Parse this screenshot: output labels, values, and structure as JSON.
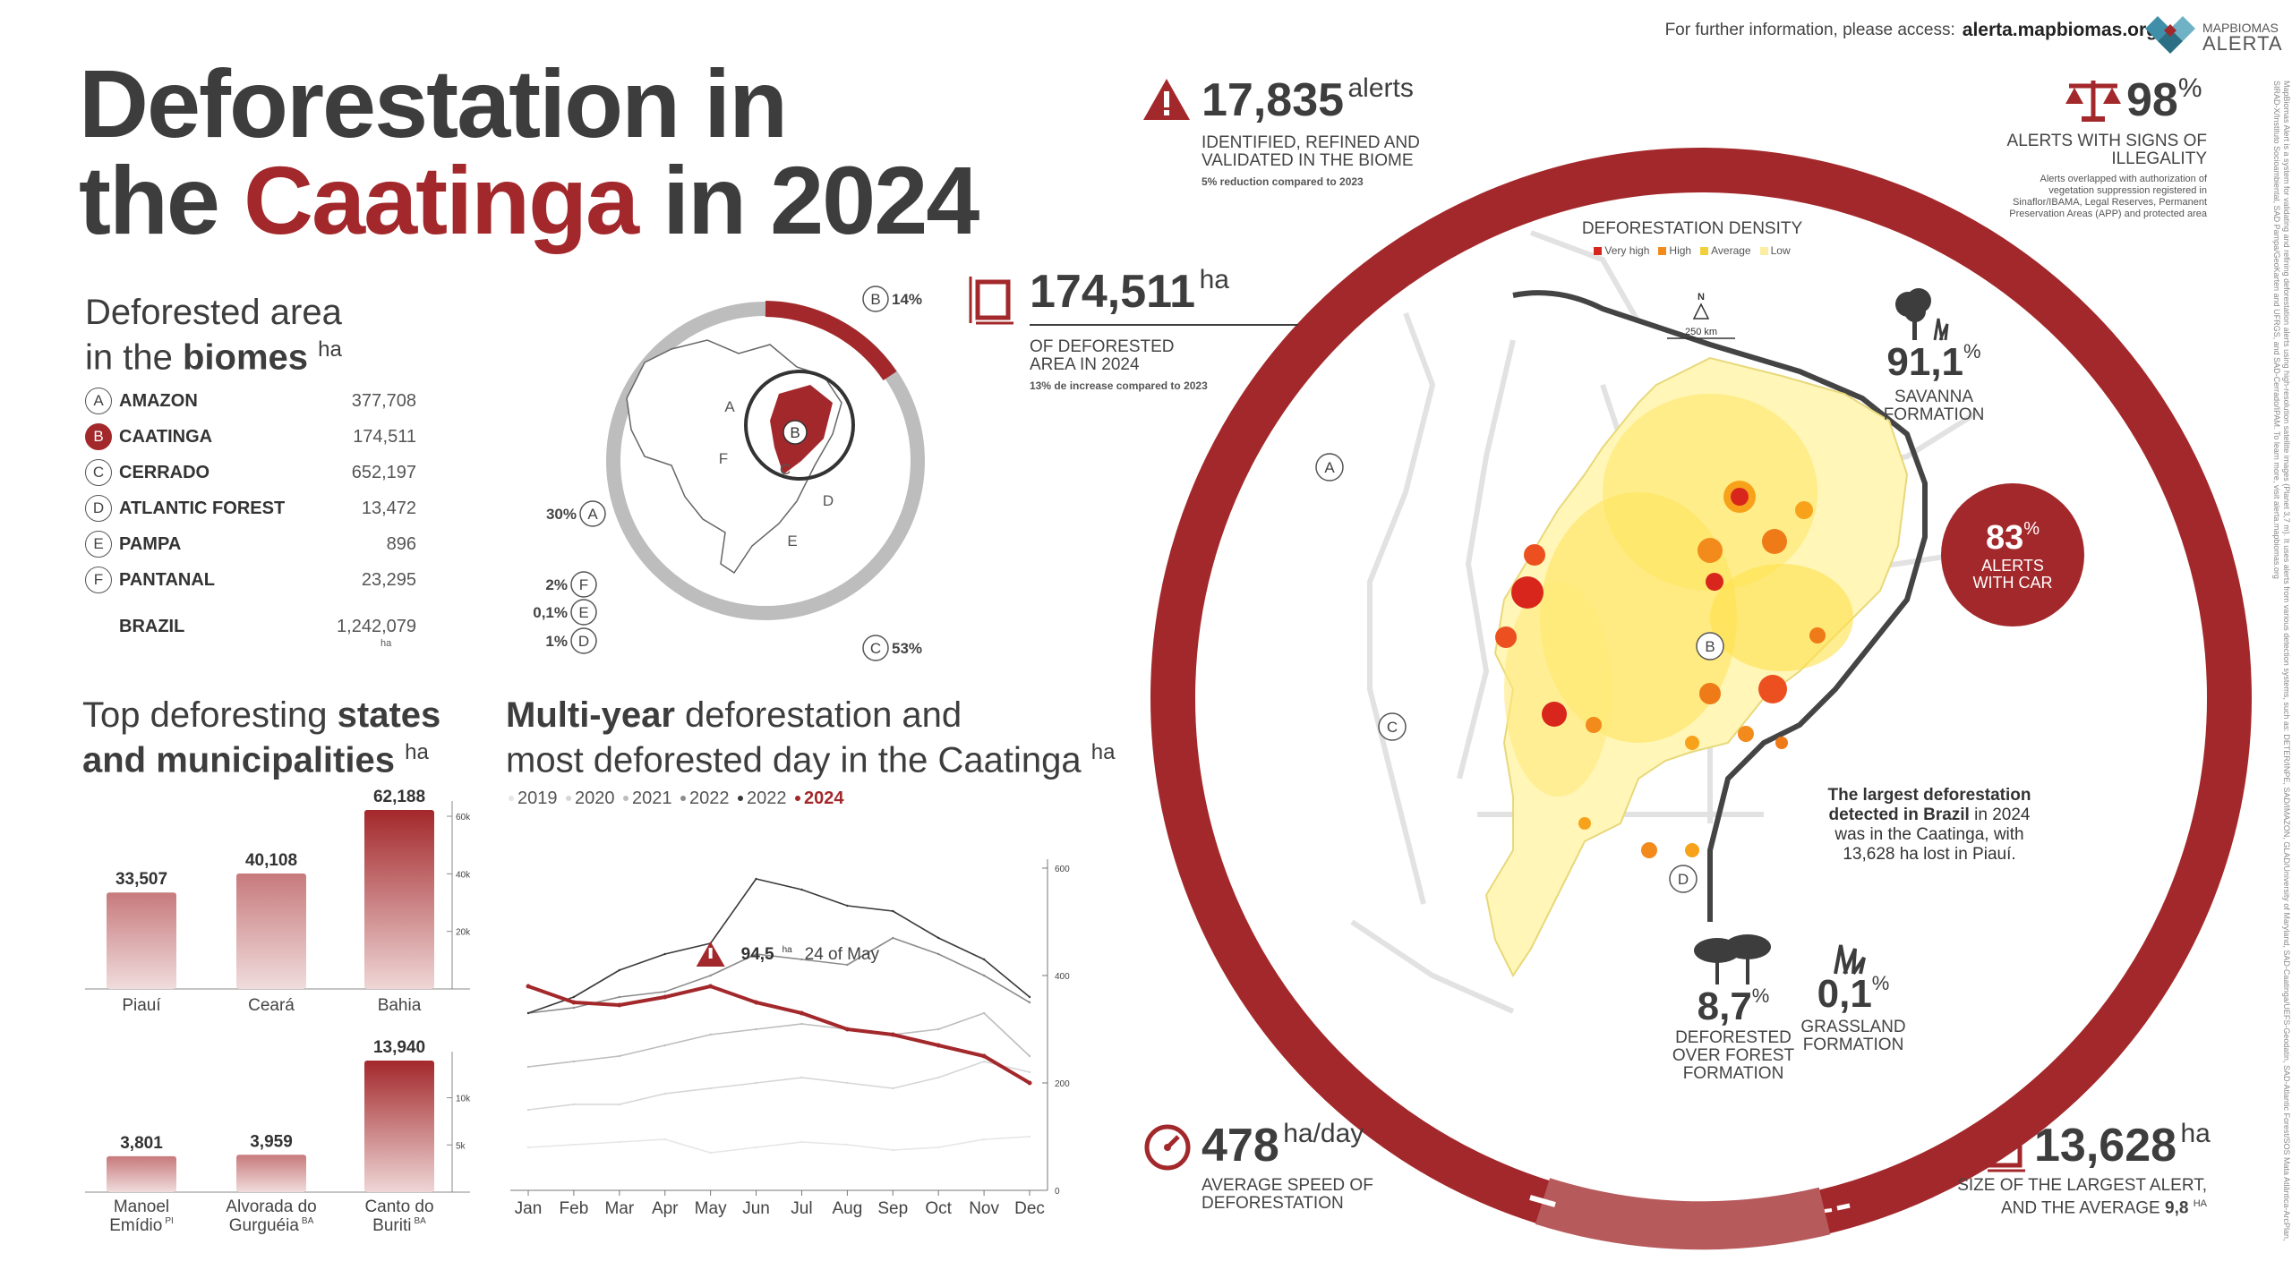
{
  "header": {
    "info_label": "For further information, please access:",
    "info_url": "alerta.mapbiomas.org",
    "logo_top": "MAPBIOMAS",
    "logo_bottom": "ALERTA"
  },
  "title": {
    "line1": "Deforestation in",
    "line2_pre": "the ",
    "line2_red": "Caatinga",
    "line2_post": " in 2024"
  },
  "biomes": {
    "heading_1": "Deforested area",
    "heading_2_pre": "in the ",
    "heading_2_bold": "biomes",
    "unit": "ha",
    "rows": [
      {
        "letter": "A",
        "name": "AMAZON",
        "value": "377,708"
      },
      {
        "letter": "B",
        "name": "CAATINGA",
        "value": "174,511"
      },
      {
        "letter": "C",
        "name": "CERRADO",
        "value": "652,197"
      },
      {
        "letter": "D",
        "name": "ATLANTIC FOREST",
        "value": "13,472"
      },
      {
        "letter": "E",
        "name": "PAMPA",
        "value": "896"
      },
      {
        "letter": "F",
        "name": "PANTANAL",
        "value": "23,295"
      }
    ],
    "total_label": "BRAZIL",
    "total_value": "1,242,079",
    "total_unit": "ha"
  },
  "brazil_map": {
    "labels": [
      "A",
      "B",
      "C",
      "D",
      "E",
      "F"
    ],
    "shares": [
      {
        "letter": "B",
        "pct": "14%"
      },
      {
        "letter": "A",
        "pct": "30%"
      },
      {
        "letter": "F",
        "pct": "2%"
      },
      {
        "letter": "E",
        "pct": "0,1%"
      },
      {
        "letter": "D",
        "pct": "1%"
      },
      {
        "letter": "C",
        "pct": "53%"
      }
    ]
  },
  "top_states": {
    "heading_pre": "Top deforesting ",
    "heading_bold1": "states",
    "heading_bold2": "and municipalities",
    "unit": "ha"
  },
  "multi_year": {
    "heading_bold": "Multi-year",
    "heading_rest1": " deforestation and",
    "heading_rest2": "most deforested day in the Caatinga",
    "unit": "ha",
    "peak_value": "94,5",
    "peak_unit": "ha",
    "peak_date": "24 of May"
  },
  "stats": {
    "alerts_value": "17,835",
    "alerts_unit": "alerts",
    "alerts_caption": "IDENTIFIED, REFINED AND VALIDATED IN THE BIOME",
    "alerts_note": "5% reduction compared to 2023",
    "area_value": "174,511",
    "area_unit": "ha",
    "area_caption": "OF DEFORESTED AREA IN 2024",
    "area_note": "13% de increase compared to 2023",
    "illegal_value": "98",
    "illegal_unit": "%",
    "illegal_caption": "ALERTS WITH SIGNS OF ILLEGALITY",
    "illegal_note": "Alerts overlapped with authorization of vegetation suppression registered in Sinaflor/IBAMA, Legal Reserves, Permanent Preservation Areas (APP) and protected area",
    "speed_value": "478",
    "speed_unit": "ha/day",
    "speed_caption": "AVERAGE SPEED OF DEFORESTATION",
    "largest_value": "13,628",
    "largest_unit": "ha",
    "largest_caption_1": "SIZE OF THE LARGEST ALERT,",
    "largest_caption_2": "AND THE AVERAGE",
    "largest_avg": "9,8",
    "largest_avg_unit": "ha"
  },
  "map": {
    "density_title": "DEFORESTATION DENSITY",
    "density_legend": [
      "Very high",
      "High",
      "Average",
      "Low"
    ],
    "north": "N",
    "scale": "250 km",
    "labels": [
      "A",
      "B",
      "C",
      "D"
    ],
    "savanna_value": "91,1",
    "savanna_unit": "%",
    "savanna_caption": "SAVANNA FORMATION",
    "forest_value": "8,7",
    "forest_unit": "%",
    "forest_caption": "DEFORESTED OVER FOREST FORMATION",
    "grass_value": "0,1",
    "grass_unit": "%",
    "grass_caption": "GRASSLAND FORMATION",
    "car_value": "83",
    "car_unit": "%",
    "car_caption": "ALERTS WITH CAR",
    "note_bold": "The largest deforestation detected in Brazil",
    "note_rest": " in 2024 was in the Caatinga, with 13,628 ha lost in Piauí."
  },
  "colors": {
    "accent": "#a3282b",
    "dark_text": "#3d3d3d",
    "ring_light": "#b75a5c",
    "grey_ring": "#bdbdbd"
  },
  "side_note": "MapBiomas Alert is a system for validating and refining deforestation alerts using high-resolution satellite images (Planet 3,7 m). It uses alerts from various detection systems, such as: DETER/INPE, SAD/IMAZON, GLAD/University of Maryland, SAD-Caatinga/UEFS-Geodatin, SAD-Atlantic Forest/SOS Mata Atlântica-ArcPlan, SIRAD-X/Instituto Socioambiental, SAD Pampa/GeoKarten and UFRGS, and SAD-Cerrado/IPAM. To learn more, visit alerta.mapbiomas.org",
  "chart_data": [
    {
      "type": "bar",
      "title": "Top deforesting states",
      "categories": [
        "Piauí",
        "Ceará",
        "Bahia"
      ],
      "values": [
        33507,
        40108,
        62188
      ],
      "value_labels": [
        "33,507",
        "40,108",
        "62,188"
      ],
      "ylim": [
        0,
        62188
      ],
      "yticks": [
        "20k",
        "40k",
        "60k"
      ],
      "ytick_values": [
        20000,
        40000,
        60000
      ]
    },
    {
      "type": "bar",
      "title": "Top deforesting municipalities",
      "categories": [
        "Manoel Emídio",
        "Alvorada do Gurguéia",
        "Canto do Buriti"
      ],
      "category_lines": [
        [
          "Manoel",
          "Emídio"
        ],
        [
          "Alvorada do",
          "Gurguéia"
        ],
        [
          "Canto do",
          "Buriti"
        ]
      ],
      "states": [
        "PI",
        "BA",
        "BA"
      ],
      "values": [
        3801,
        3959,
        13940
      ],
      "value_labels": [
        "3,801",
        "3,959",
        "13,940"
      ],
      "ylim": [
        0,
        13940
      ],
      "yticks": [
        "5k",
        "10k"
      ],
      "ytick_values": [
        5000,
        10000
      ]
    },
    {
      "type": "line",
      "title": "Multi-year deforestation and most deforested day in the Caatinga",
      "categories": [
        "Jan",
        "Feb",
        "Mar",
        "Apr",
        "May",
        "Jun",
        "Jul",
        "Aug",
        "Sep",
        "Oct",
        "Nov",
        "Dec"
      ],
      "ylim": [
        0,
        600
      ],
      "yticks": [
        0,
        200,
        400,
        600
      ],
      "legend": [
        "2019",
        "2020",
        "2021",
        "2022",
        "2022",
        "2024"
      ],
      "series": [
        {
          "name": "2019",
          "color": "#e6e6e6",
          "values": [
            80,
            85,
            90,
            95,
            70,
            80,
            90,
            85,
            75,
            80,
            95,
            100
          ]
        },
        {
          "name": "2020",
          "color": "#d6d6d6",
          "values": [
            150,
            160,
            160,
            180,
            190,
            200,
            210,
            200,
            190,
            210,
            240,
            220
          ]
        },
        {
          "name": "2021",
          "color": "#bdbdbd",
          "values": [
            230,
            240,
            250,
            270,
            290,
            300,
            310,
            300,
            290,
            300,
            330,
            250
          ]
        },
        {
          "name": "2022",
          "color": "#8c8c8c",
          "values": [
            330,
            340,
            360,
            370,
            400,
            440,
            430,
            420,
            470,
            440,
            400,
            350
          ]
        },
        {
          "name": "2022",
          "color": "#3a3a3a",
          "values": [
            330,
            360,
            410,
            440,
            460,
            580,
            560,
            530,
            520,
            470,
            430,
            360
          ]
        },
        {
          "name": "2024",
          "color": "#a3282b",
          "values": [
            380,
            350,
            345,
            360,
            380,
            350,
            330,
            300,
            290,
            270,
            250,
            200
          ]
        }
      ]
    }
  ]
}
